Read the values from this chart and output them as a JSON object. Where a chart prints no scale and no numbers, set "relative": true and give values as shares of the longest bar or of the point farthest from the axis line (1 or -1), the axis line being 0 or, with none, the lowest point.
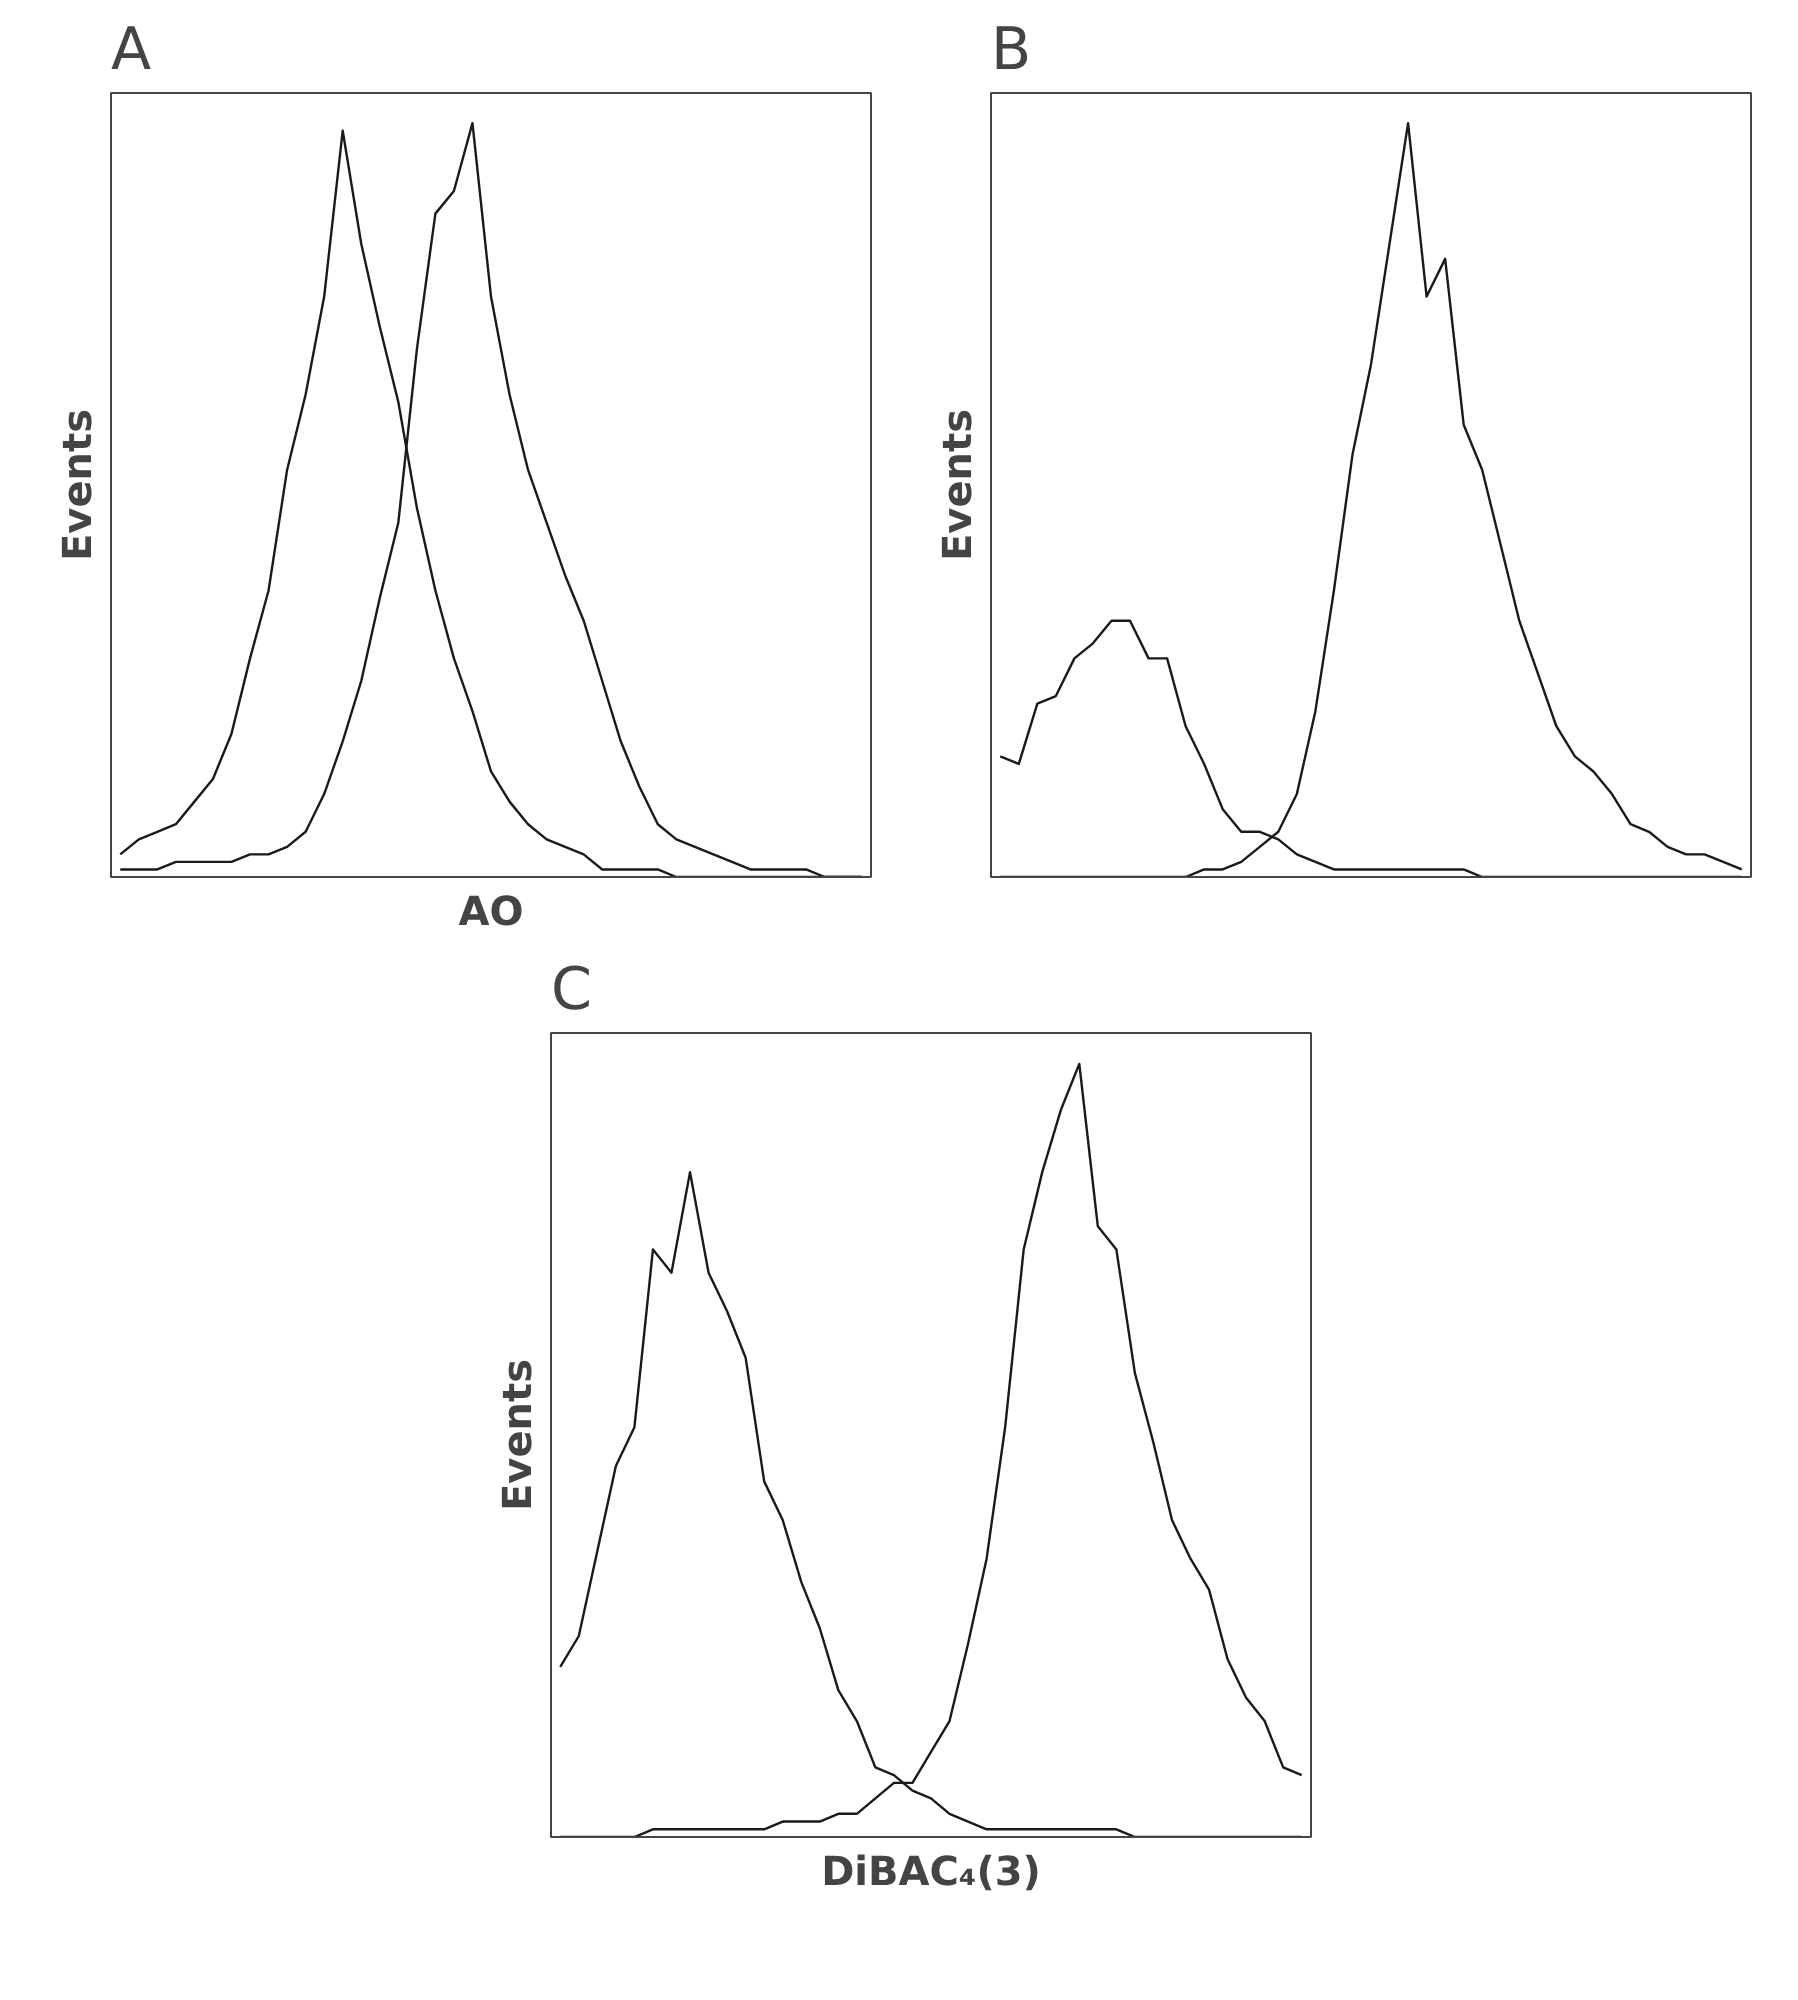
{
  "chart_data": [
    {
      "type": "line",
      "title": "A",
      "ylabel": "Events",
      "xlabel": "AO",
      "relative": true,
      "tick_labels": false,
      "categories": [
        null,
        null,
        null,
        null,
        null,
        null,
        null,
        null,
        null,
        null,
        null,
        null,
        null,
        null,
        null,
        null,
        null,
        null,
        null,
        null,
        null,
        null,
        null,
        null,
        null,
        null,
        null,
        null,
        null,
        null,
        null,
        null,
        null,
        null,
        null,
        null,
        null,
        null,
        null,
        null,
        null
      ],
      "series": [
        {
          "color": "#1a1a1a",
          "values": [
            0.03,
            0.05,
            0.06,
            0.07,
            0.1,
            0.13,
            0.19,
            0.29,
            0.38,
            0.54,
            0.64,
            0.77,
            0.99,
            0.84,
            0.73,
            0.63,
            0.49,
            0.38,
            0.29,
            0.22,
            0.14,
            0.1,
            0.07,
            0.05,
            0.04,
            0.03,
            0.01,
            0.01,
            0.01,
            0.01,
            0,
            0,
            0,
            0,
            0,
            0,
            0,
            0,
            0,
            0,
            0
          ]
        },
        {
          "color": "#1a1a1a",
          "values": [
            0.01,
            0.01,
            0.01,
            0.02,
            0.02,
            0.02,
            0.02,
            0.03,
            0.03,
            0.04,
            0.06,
            0.11,
            0.18,
            0.26,
            0.37,
            0.47,
            0.7,
            0.88,
            0.91,
            1.0,
            0.77,
            0.64,
            0.54,
            0.47,
            0.4,
            0.34,
            0.26,
            0.18,
            0.12,
            0.07,
            0.05,
            0.04,
            0.03,
            0.02,
            0.01,
            0.01,
            0.01,
            0.01,
            0,
            0,
            0
          ]
        }
      ]
    },
    {
      "type": "line",
      "title": "B",
      "ylabel": "Events",
      "relative": true,
      "tick_labels": false,
      "categories": [
        null,
        null,
        null,
        null,
        null,
        null,
        null,
        null,
        null,
        null,
        null,
        null,
        null,
        null,
        null,
        null,
        null,
        null,
        null,
        null,
        null,
        null,
        null,
        null,
        null,
        null,
        null,
        null,
        null,
        null,
        null,
        null,
        null,
        null,
        null,
        null,
        null,
        null,
        null,
        null,
        null
      ],
      "series": [
        {
          "color": "#1a1a1a",
          "values": [
            0.16,
            0.15,
            0.23,
            0.24,
            0.29,
            0.31,
            0.34,
            0.34,
            0.29,
            0.29,
            0.2,
            0.15,
            0.09,
            0.06,
            0.06,
            0.05,
            0.03,
            0.02,
            0.01,
            0.01,
            0.01,
            0.01,
            0.01,
            0.01,
            0.01,
            0.01,
            0,
            0,
            0,
            0,
            0,
            0,
            0,
            0,
            0,
            0,
            0,
            0,
            0,
            0,
            0
          ]
        },
        {
          "color": "#1a1a1a",
          "values": [
            0,
            0,
            0,
            0,
            0,
            0,
            0,
            0,
            0,
            0,
            0,
            0.01,
            0.01,
            0.02,
            0.04,
            0.06,
            0.11,
            0.22,
            0.38,
            0.56,
            0.68,
            0.84,
            1.0,
            0.77,
            0.82,
            0.6,
            0.54,
            0.44,
            0.34,
            0.27,
            0.2,
            0.16,
            0.14,
            0.11,
            0.07,
            0.06,
            0.04,
            0.03,
            0.03,
            0.02,
            0.01
          ]
        }
      ]
    },
    {
      "type": "line",
      "title": "C",
      "ylabel": "Events",
      "xlabel": "DiBAC₄(3)",
      "relative": true,
      "tick_labels": false,
      "categories": [
        null,
        null,
        null,
        null,
        null,
        null,
        null,
        null,
        null,
        null,
        null,
        null,
        null,
        null,
        null,
        null,
        null,
        null,
        null,
        null,
        null,
        null,
        null,
        null,
        null,
        null,
        null,
        null,
        null,
        null,
        null,
        null,
        null,
        null,
        null,
        null,
        null,
        null,
        null,
        null,
        null
      ],
      "series": [
        {
          "color": "#1a1a1a",
          "values": [
            0.22,
            0.26,
            0.37,
            0.48,
            0.53,
            0.76,
            0.73,
            0.86,
            0.73,
            0.68,
            0.62,
            0.46,
            0.41,
            0.33,
            0.27,
            0.19,
            0.15,
            0.09,
            0.08,
            0.06,
            0.05,
            0.03,
            0.02,
            0.01,
            0.01,
            0.01,
            0.01,
            0.01,
            0.01,
            0.01,
            0.01,
            0,
            0,
            0,
            0,
            0,
            0,
            0,
            0,
            0,
            0
          ]
        },
        {
          "color": "#1a1a1a",
          "values": [
            0,
            0,
            0,
            0,
            0,
            0.01,
            0.01,
            0.01,
            0.01,
            0.01,
            0.01,
            0.01,
            0.02,
            0.02,
            0.02,
            0.03,
            0.03,
            0.05,
            0.07,
            0.07,
            0.11,
            0.15,
            0.25,
            0.36,
            0.53,
            0.76,
            0.86,
            0.94,
            1.0,
            0.79,
            0.76,
            0.6,
            0.51,
            0.41,
            0.36,
            0.32,
            0.23,
            0.18,
            0.15,
            0.09,
            0.08
          ]
        }
      ]
    }
  ]
}
